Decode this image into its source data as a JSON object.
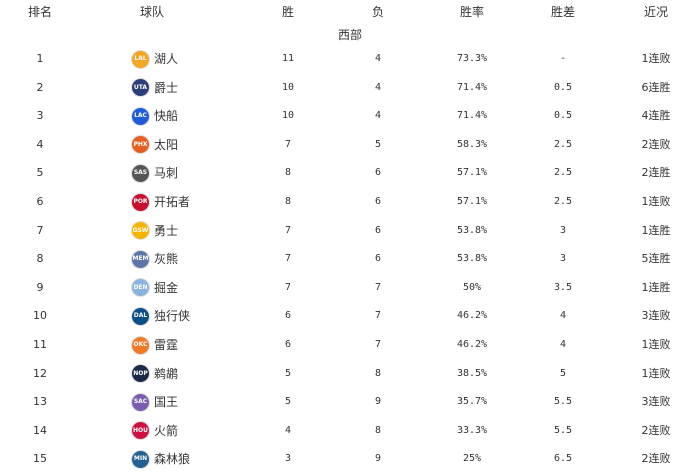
{
  "headers": [
    "排名",
    "球队",
    "胜",
    "负",
    "胜率",
    "胜差",
    "近况"
  ],
  "conference": "西部",
  "rows": [
    {
      "rank": "1",
      "abbr": "LAL",
      "team": "湖人",
      "w": "11",
      "l": "4",
      "pct": "73.3%",
      "gb": "-",
      "streak": "1连败",
      "color": "#f5a623"
    },
    {
      "rank": "2",
      "abbr": "UTA",
      "team": "爵士",
      "w": "10",
      "l": "4",
      "pct": "71.4%",
      "gb": "0.5",
      "streak": "6连胜",
      "color": "#2c3e7a"
    },
    {
      "rank": "3",
      "abbr": "LAC",
      "team": "快船",
      "w": "10",
      "l": "4",
      "pct": "71.4%",
      "gb": "0.5",
      "streak": "4连胜",
      "color": "#1d5bd8"
    },
    {
      "rank": "4",
      "abbr": "PHX",
      "team": "太阳",
      "w": "7",
      "l": "5",
      "pct": "58.3%",
      "gb": "2.5",
      "streak": "2连败",
      "color": "#e56020"
    },
    {
      "rank": "5",
      "abbr": "SAS",
      "team": "马刺",
      "w": "8",
      "l": "6",
      "pct": "57.1%",
      "gb": "2.5",
      "streak": "2连胜",
      "color": "#555555"
    },
    {
      "rank": "6",
      "abbr": "POR",
      "team": "开拓者",
      "w": "8",
      "l": "6",
      "pct": "57.1%",
      "gb": "2.5",
      "streak": "1连败",
      "color": "#c8102e"
    },
    {
      "rank": "7",
      "abbr": "GSW",
      "team": "勇士",
      "w": "7",
      "l": "6",
      "pct": "53.8%",
      "gb": "3",
      "streak": "1连胜",
      "color": "#f4b400"
    },
    {
      "rank": "8",
      "abbr": "MEM",
      "team": "灰熊",
      "w": "7",
      "l": "6",
      "pct": "53.8%",
      "gb": "3",
      "streak": "5连胜",
      "color": "#5d76a9"
    },
    {
      "rank": "9",
      "abbr": "DEN",
      "team": "掘金",
      "w": "7",
      "l": "7",
      "pct": "50%",
      "gb": "3.5",
      "streak": "1连胜",
      "color": "#8ab4e0"
    },
    {
      "rank": "10",
      "abbr": "DAL",
      "team": "独行侠",
      "w": "6",
      "l": "7",
      "pct": "46.2%",
      "gb": "4",
      "streak": "3连败",
      "color": "#0b4f8a"
    },
    {
      "rank": "11",
      "abbr": "OKC",
      "team": "雷霆",
      "w": "6",
      "l": "7",
      "pct": "46.2%",
      "gb": "4",
      "streak": "1连败",
      "color": "#f07a28"
    },
    {
      "rank": "12",
      "abbr": "NOP",
      "team": "鹈鹕",
      "w": "5",
      "l": "8",
      "pct": "38.5%",
      "gb": "5",
      "streak": "1连败",
      "color": "#1b2a4a"
    },
    {
      "rank": "13",
      "abbr": "SAC",
      "team": "国王",
      "w": "5",
      "l": "9",
      "pct": "35.7%",
      "gb": "5.5",
      "streak": "3连败",
      "color": "#7a5cb0"
    },
    {
      "rank": "14",
      "abbr": "HOU",
      "team": "火箭",
      "w": "4",
      "l": "8",
      "pct": "33.3%",
      "gb": "5.5",
      "streak": "2连败",
      "color": "#ce1141"
    },
    {
      "rank": "15",
      "abbr": "MIN",
      "team": "森林狼",
      "w": "3",
      "l": "9",
      "pct": "25%",
      "gb": "6.5",
      "streak": "2连败",
      "color": "#236192"
    }
  ]
}
